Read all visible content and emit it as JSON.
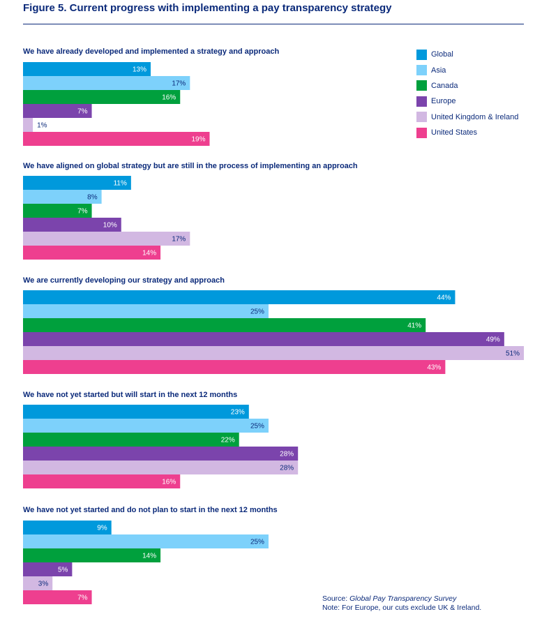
{
  "title": "Figure 5. Current progress with implementing a pay transparency strategy",
  "footer": {
    "source_prefix": "Source:",
    "source_name": "Global Pay Transparency Survey",
    "note": "Note: For Europe, our cuts exclude UK & Ireland."
  },
  "chart_data": {
    "type": "bar",
    "orientation": "horizontal",
    "value_unit": "%",
    "legend_position": "top-right",
    "grid": false,
    "xlim": [
      0,
      51
    ],
    "series": [
      {
        "name": "Global",
        "color": "#0099dc"
      },
      {
        "name": "Asia",
        "color": "#7dd1fb"
      },
      {
        "name": "Canada",
        "color": "#00a03d"
      },
      {
        "name": "Europe",
        "color": "#7b44ac"
      },
      {
        "name": "United Kingdom & Ireland",
        "color": "#d2b8e2"
      },
      {
        "name": "United States",
        "color": "#ee3f8f"
      }
    ],
    "groups": [
      {
        "title": "We have already developed and implemented a strategy and approach",
        "values": [
          13,
          17,
          16,
          7,
          1,
          19
        ]
      },
      {
        "title": "We have aligned on global strategy but are still in the process of implementing an approach",
        "values": [
          11,
          8,
          7,
          10,
          17,
          14
        ]
      },
      {
        "title": "We are currently developing our strategy and approach",
        "values": [
          44,
          25,
          41,
          49,
          51,
          43
        ]
      },
      {
        "title": "We have not yet started but will start in the next 12 months",
        "values": [
          23,
          25,
          22,
          28,
          28,
          16
        ]
      },
      {
        "title": "We have not yet started and do not plan to start in the next 12 months",
        "values": [
          9,
          25,
          14,
          5,
          3,
          7
        ]
      }
    ]
  }
}
